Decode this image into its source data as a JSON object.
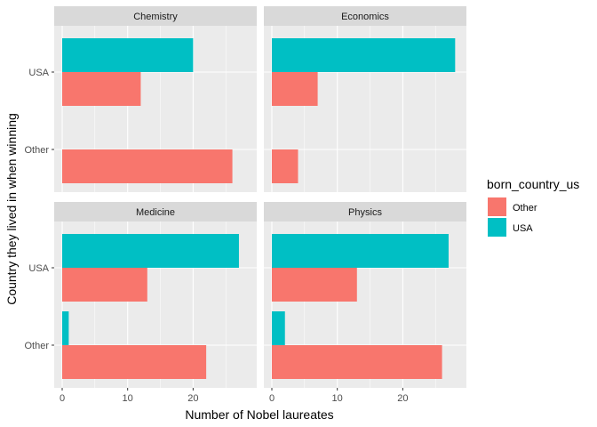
{
  "chart_data": {
    "type": "bar",
    "orientation": "horizontal",
    "facet_layout": "2x2",
    "xlabel": "Number of Nobel laureates",
    "ylabel": "Country they lived in when winning",
    "xlim": [
      0,
      28.5
    ],
    "x_ticks": [
      0,
      10,
      20
    ],
    "categories": [
      "Other",
      "USA"
    ],
    "legend": {
      "title": "born_country_us",
      "position": "right",
      "entries": [
        {
          "name": "Other",
          "color": "#F8766D"
        },
        {
          "name": "USA",
          "color": "#00BFC4"
        }
      ]
    },
    "grid": true,
    "facets": [
      {
        "name": "Chemistry",
        "series": [
          {
            "name": "Other",
            "values": [
              26,
              12
            ]
          },
          {
            "name": "USA",
            "values": [
              0,
              20
            ]
          }
        ]
      },
      {
        "name": "Economics",
        "series": [
          {
            "name": "Other",
            "values": [
              4,
              7
            ]
          },
          {
            "name": "USA",
            "values": [
              0,
              28
            ]
          }
        ]
      },
      {
        "name": "Medicine",
        "series": [
          {
            "name": "Other",
            "values": [
              22,
              13
            ]
          },
          {
            "name": "USA",
            "values": [
              1,
              27
            ]
          }
        ]
      },
      {
        "name": "Physics",
        "series": [
          {
            "name": "Other",
            "values": [
              26,
              13
            ]
          },
          {
            "name": "USA",
            "values": [
              2,
              27
            ]
          }
        ]
      }
    ]
  }
}
